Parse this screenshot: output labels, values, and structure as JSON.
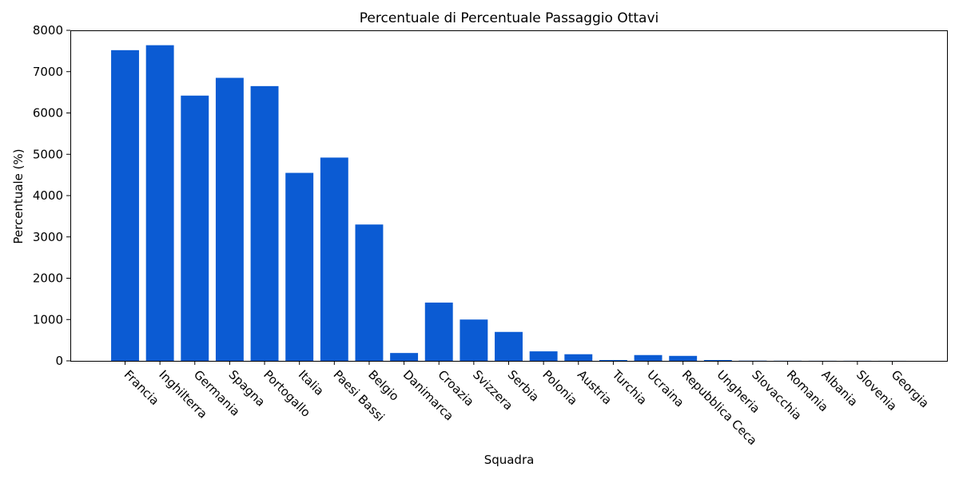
{
  "chart_data": {
    "type": "bar",
    "title": "Percentuale di Percentuale Passaggio Ottavi",
    "xlabel": "Squadra",
    "ylabel": "Percentuale (%)",
    "ylim": [
      0,
      8000
    ],
    "yticks": [
      0,
      1000,
      2000,
      3000,
      4000,
      5000,
      6000,
      7000,
      8000
    ],
    "grid": false,
    "bar_color": "#0b5bd3",
    "categories": [
      "Francia",
      "Inghilterra",
      "Germania",
      "Spagna",
      "Portogallo",
      "Italia",
      "Paesi Bassi",
      "Belgio",
      "Danimarca",
      "Croazia",
      "Svizzera",
      "Serbia",
      "Polonia",
      "Austria",
      "Turchia",
      "Ucraina",
      "Repubblica Ceca",
      "Ungheria",
      "Slovacchia",
      "Romania",
      "Albania",
      "Slovenia",
      "Georgia"
    ],
    "values": [
      7520,
      7640,
      6420,
      6850,
      6650,
      4550,
      4920,
      3300,
      190,
      1410,
      1000,
      700,
      230,
      160,
      20,
      140,
      120,
      20,
      5,
      3,
      2,
      2,
      1
    ]
  }
}
